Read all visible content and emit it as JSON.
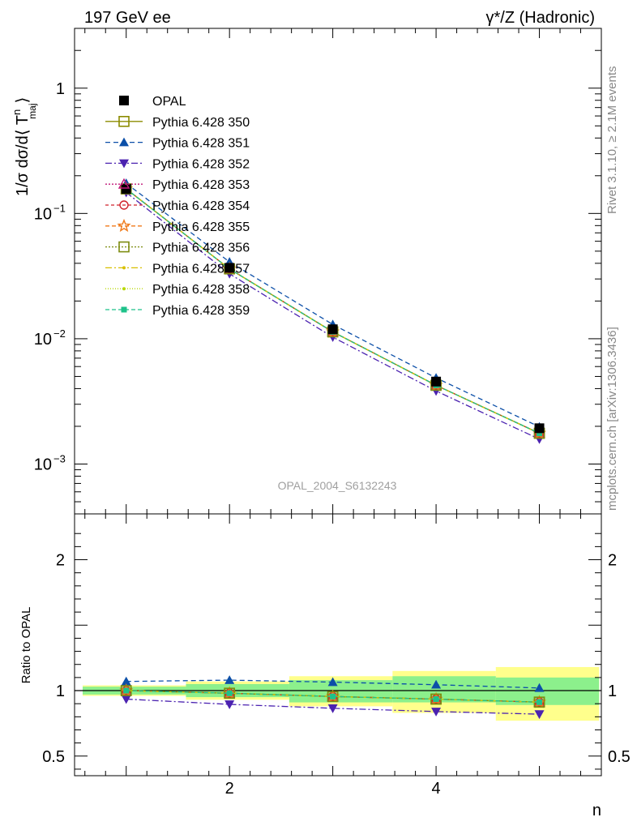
{
  "header": {
    "left": "197 GeV ee",
    "right": "γ*/Z (Hadronic)"
  },
  "side_text": {
    "rivet": "Rivet 3.1.10, ≥ 2.1M events",
    "mcplots": "mcplots.cern.ch [arXiv:1306.3436]"
  },
  "watermark": "OPAL_2004_S6132243",
  "axis": {
    "ylabel_main": "1/σ dσ/d⟨ T",
    "ylabel_main_sup": "n",
    "ylabel_main_sub": "maj",
    "ylabel_main_close": "⟩",
    "ylabel_ratio": "Ratio to OPAL",
    "xlabel": "n"
  },
  "chart_data": [
    {
      "type": "line",
      "panel": "main",
      "x_range": [
        0.5,
        5.6
      ],
      "y_scale": "log",
      "y_range": [
        0.0004,
        3.0
      ],
      "x_ticks": [
        {
          "v": 2,
          "label": "2"
        },
        {
          "v": 4,
          "label": "4"
        }
      ],
      "y_ticks": [
        {
          "v": 1,
          "label": "1"
        },
        {
          "v": 0.1,
          "label": "10",
          "exp": "−1"
        },
        {
          "v": 0.01,
          "label": "10",
          "exp": "−2"
        },
        {
          "v": 0.001,
          "label": "10",
          "exp": "−3"
        }
      ],
      "x": [
        1,
        2,
        3,
        4,
        5
      ],
      "data": {
        "name": "OPAL",
        "values": [
          0.157,
          0.0368,
          0.0119,
          0.00455,
          0.00193
        ]
      },
      "series": [
        {
          "name": "Pythia 6.428 350",
          "color": "#8b8b00",
          "dash": "",
          "marker": "square-open",
          "values": [
            0.157,
            0.0361,
            0.01135,
            0.00425,
            0.00176
          ]
        },
        {
          "name": "Pythia 6.428 351",
          "color": "#0c4fa8",
          "dash": "6,4",
          "marker": "triangle-up",
          "values": [
            0.174,
            0.041,
            0.013,
            0.00487,
            0.00198
          ]
        },
        {
          "name": "Pythia 6.428 352",
          "color": "#4b22b0",
          "dash": "8,3,2,3",
          "marker": "triangle-down",
          "values": [
            0.147,
            0.033,
            0.0103,
            0.00383,
            0.00158
          ]
        },
        {
          "name": "Pythia 6.428 353",
          "color": "#c0187a",
          "dash": "2,2",
          "marker": "triangle-open",
          "values": [
            0.157,
            0.0361,
            0.01135,
            0.00425,
            0.00176
          ]
        },
        {
          "name": "Pythia 6.428 354",
          "color": "#d0202a",
          "dash": "4,3",
          "marker": "circle-open",
          "values": [
            0.157,
            0.0361,
            0.01135,
            0.00425,
            0.00176
          ]
        },
        {
          "name": "Pythia 6.428 355",
          "color": "#f07a1a",
          "dash": "5,3",
          "marker": "star-open",
          "values": [
            0.157,
            0.0361,
            0.01135,
            0.00425,
            0.00176
          ]
        },
        {
          "name": "Pythia 6.428 356",
          "color": "#7d8c10",
          "dash": "2,2",
          "marker": "square-open",
          "values": [
            0.157,
            0.0361,
            0.01135,
            0.00425,
            0.00176
          ]
        },
        {
          "name": "Pythia 6.428 357",
          "color": "#d8c000",
          "dash": "8,3,2,3",
          "marker": "dot",
          "values": [
            0.157,
            0.0361,
            0.01135,
            0.00425,
            0.00176
          ]
        },
        {
          "name": "Pythia 6.428 358",
          "color": "#b8d800",
          "dash": "1,2",
          "marker": "dot",
          "values": [
            0.157,
            0.0361,
            0.01135,
            0.00425,
            0.00176
          ]
        },
        {
          "name": "Pythia 6.428 359",
          "color": "#1ec28a",
          "dash": "5,3",
          "marker": "square-small",
          "values": [
            0.157,
            0.0361,
            0.01135,
            0.00425,
            0.00176
          ]
        }
      ]
    },
    {
      "type": "line",
      "panel": "ratio",
      "x_range": [
        0.5,
        5.6
      ],
      "y_range": [
        0.35,
        2.35
      ],
      "y_ticks": [
        {
          "v": 0.5,
          "label": "0.5"
        },
        {
          "v": 1,
          "label": "1"
        },
        {
          "v": 2,
          "label": "2"
        }
      ],
      "x": [
        1,
        2,
        3,
        4,
        5
      ],
      "bands": {
        "edges": [
          0.5,
          1.5,
          2.5,
          3.5,
          4.5,
          5.5
        ],
        "yellow": [
          [
            0.96,
            1.04
          ],
          [
            0.93,
            1.07
          ],
          [
            0.88,
            1.11
          ],
          [
            0.83,
            1.15
          ],
          [
            0.77,
            1.18
          ]
        ],
        "green": [
          [
            0.97,
            1.03
          ],
          [
            0.95,
            1.05
          ],
          [
            0.91,
            1.08
          ],
          [
            0.91,
            1.11
          ],
          [
            0.89,
            1.1
          ]
        ]
      },
      "series": [
        {
          "name": "Pythia 6.428 350",
          "color": "#8b8b00",
          "dash": "",
          "marker": "square-open",
          "values": [
            1.0,
            0.98,
            0.955,
            0.935,
            0.912
          ]
        },
        {
          "name": "Pythia 6.428 351",
          "color": "#0c4fa8",
          "dash": "6,4",
          "marker": "triangle-up",
          "values": [
            1.07,
            1.08,
            1.065,
            1.045,
            1.02
          ]
        },
        {
          "name": "Pythia 6.428 352",
          "color": "#4b22b0",
          "dash": "8,3,2,3",
          "marker": "triangle-down",
          "values": [
            0.935,
            0.895,
            0.865,
            0.84,
            0.82
          ]
        },
        {
          "name": "Pythia 6.428 353",
          "color": "#c0187a",
          "dash": "2,2",
          "marker": "triangle-open",
          "values": [
            1.0,
            0.98,
            0.955,
            0.935,
            0.912
          ]
        },
        {
          "name": "Pythia 6.428 354",
          "color": "#d0202a",
          "dash": "4,3",
          "marker": "circle-open",
          "values": [
            1.0,
            0.98,
            0.955,
            0.935,
            0.912
          ]
        },
        {
          "name": "Pythia 6.428 355",
          "color": "#f07a1a",
          "dash": "5,3",
          "marker": "star-open",
          "values": [
            1.0,
            0.98,
            0.955,
            0.935,
            0.912
          ]
        },
        {
          "name": "Pythia 6.428 356",
          "color": "#7d8c10",
          "dash": "2,2",
          "marker": "square-open",
          "values": [
            1.0,
            0.98,
            0.955,
            0.935,
            0.912
          ]
        },
        {
          "name": "Pythia 6.428 357",
          "color": "#d8c000",
          "dash": "8,3,2,3",
          "marker": "dot",
          "values": [
            1.0,
            0.98,
            0.955,
            0.935,
            0.912
          ]
        },
        {
          "name": "Pythia 6.428 358",
          "color": "#b8d800",
          "dash": "1,2",
          "marker": "dot",
          "values": [
            1.0,
            0.98,
            0.955,
            0.935,
            0.912
          ]
        },
        {
          "name": "Pythia 6.428 359",
          "color": "#1ec28a",
          "dash": "5,3",
          "marker": "square-small",
          "values": [
            1.0,
            0.98,
            0.955,
            0.935,
            0.912
          ]
        }
      ]
    }
  ]
}
